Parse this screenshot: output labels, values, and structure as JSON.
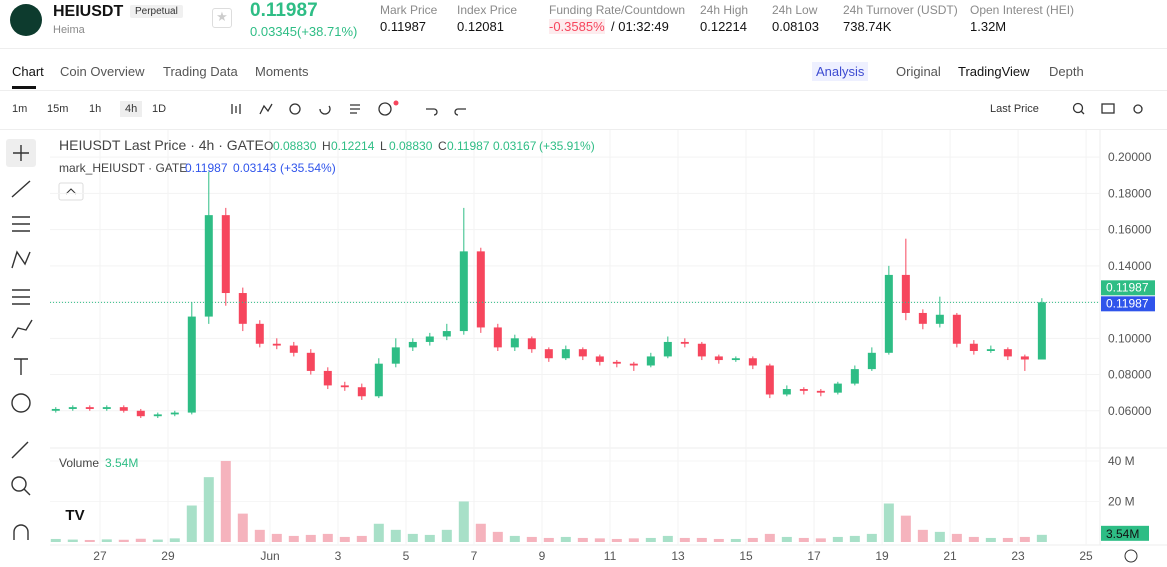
{
  "header": {
    "symbol": "HEIUSDT",
    "badge": "Perpetual",
    "subtitle": "Heima",
    "price": "0.11987",
    "change": "0.03345(+38.71%)",
    "stats": [
      {
        "label": "Mark Price",
        "value": "0.11987"
      },
      {
        "label": "Index Price",
        "value": "0.12081"
      },
      {
        "label": "Funding Rate/Countdown",
        "value": "-0.3585%",
        "extra": "/ 01:32:49"
      },
      {
        "label": "24h High",
        "value": "0.12214"
      },
      {
        "label": "24h Low",
        "value": "0.08103"
      },
      {
        "label": "24h Turnover (USDT)",
        "value": "738.74K"
      },
      {
        "label": "Open Interest (HEI)",
        "value": "1.32M"
      }
    ]
  },
  "tabs": [
    "Chart",
    "Coin Overview",
    "Trading Data",
    "Moments"
  ],
  "views": [
    "Analysis",
    "Original",
    "TradingView",
    "Depth"
  ],
  "intervals": [
    "1m",
    "15m",
    "1h",
    "4h",
    "1D"
  ],
  "price_source": "Last Price",
  "chart_data": {
    "type": "candlestick",
    "title": "HEIUSDT Last Price · 4h · GATE",
    "legend": [
      {
        "key": "O",
        "value": "0.08830"
      },
      {
        "key": "H",
        "value": "0.12214"
      },
      {
        "key": "L",
        "value": "0.08830"
      },
      {
        "key": "C",
        "value": "0.11987"
      }
    ],
    "change": "0.03167",
    "change_pct": "(+35.91%)",
    "mark_line": {
      "name": "mark_HEIUSDT · GATE",
      "value": "0.11987",
      "change": "0.03143",
      "change_pct": "(+35.54%)"
    },
    "volume_title": "Volume",
    "volume_value": "3.54M",
    "volume_tag": "3.54M",
    "last_price_tag": "0.11987",
    "mark_price_tag": "0.11987",
    "up_color": "#2ebd85",
    "down_color": "#f6465d",
    "up_volume_color": "#a8e0c8",
    "down_volume_color": "#f5b3bd",
    "xlim": [
      25.53,
      56.41
    ],
    "xticks": [
      27,
      29,
      {
        "value": 32,
        "label": "Jun"
      },
      {
        "value": 34,
        "label": "3"
      },
      {
        "value": 36,
        "label": "5"
      },
      {
        "value": 38,
        "label": "7"
      },
      {
        "value": 40,
        "label": "9"
      },
      {
        "value": 42,
        "label": "11"
      },
      {
        "value": 44,
        "label": "13"
      },
      {
        "value": 46,
        "label": "15"
      },
      {
        "value": 48,
        "label": "17"
      },
      {
        "value": 50,
        "label": "19"
      },
      {
        "value": 52,
        "label": "21"
      },
      {
        "value": 54,
        "label": "23"
      },
      {
        "value": 56,
        "label": "25"
      }
    ],
    "ylim": [
      0.04,
      0.215
    ],
    "yticks": [
      {
        "value": 0.06,
        "label": "0.06000"
      },
      {
        "value": 0.08,
        "label": "0.08000"
      },
      {
        "value": 0.1,
        "label": "0.10000"
      },
      {
        "value": 0.12,
        "label": "0.12000"
      },
      {
        "value": 0.14,
        "label": "0.14000"
      },
      {
        "value": 0.16,
        "label": "0.16000"
      },
      {
        "value": 0.18,
        "label": "0.18000"
      },
      {
        "value": 0.2,
        "label": "0.20000"
      }
    ],
    "volume_ylim": [
      0,
      45400000
    ],
    "volume_ticks": [
      {
        "value": 20000000,
        "label": "20 M"
      },
      {
        "value": 40000000,
        "label": "40 M"
      }
    ],
    "grid": true,
    "x": [
      25.7,
      26.2,
      26.7,
      27.2,
      27.7,
      28.2,
      28.7,
      29.2,
      29.7,
      30.2,
      30.7,
      31.2,
      31.7,
      32.2,
      32.7,
      33.2,
      33.7,
      34.2,
      34.7,
      35.2,
      35.7,
      36.2,
      36.7,
      37.2,
      37.7,
      38.2,
      38.7,
      39.2,
      39.7,
      40.2,
      40.7,
      41.2,
      41.7,
      42.2,
      42.7,
      43.2,
      43.7,
      44.2,
      44.7,
      45.2,
      45.7,
      46.2,
      46.7,
      47.2,
      47.7,
      48.2,
      48.7,
      49.2,
      49.7,
      50.2,
      50.7,
      51.2,
      51.7,
      52.2,
      52.7,
      53.2,
      53.7,
      54.2,
      54.7
    ],
    "open": [
      0.06,
      0.061,
      0.062,
      0.061,
      0.062,
      0.06,
      0.057,
      0.058,
      0.059,
      0.112,
      0.168,
      0.125,
      0.108,
      0.097,
      0.096,
      0.092,
      0.082,
      0.074,
      0.073,
      0.068,
      0.086,
      0.095,
      0.098,
      0.101,
      0.104,
      0.148,
      0.106,
      0.095,
      0.1,
      0.094,
      0.089,
      0.094,
      0.09,
      0.087,
      0.086,
      0.085,
      0.09,
      0.098,
      0.097,
      0.09,
      0.088,
      0.089,
      0.085,
      0.069,
      0.072,
      0.071,
      0.07,
      0.075,
      0.083,
      0.092,
      0.135,
      0.114,
      0.108,
      0.113,
      0.097,
      0.093,
      0.094,
      0.09,
      0.0883
    ],
    "high": [
      0.062,
      0.063,
      0.063,
      0.063,
      0.063,
      0.061,
      0.059,
      0.06,
      0.12,
      0.192,
      0.172,
      0.128,
      0.11,
      0.1,
      0.098,
      0.094,
      0.084,
      0.076,
      0.075,
      0.089,
      0.1,
      0.1,
      0.103,
      0.108,
      0.172,
      0.15,
      0.108,
      0.102,
      0.101,
      0.095,
      0.096,
      0.095,
      0.091,
      0.088,
      0.087,
      0.092,
      0.101,
      0.1,
      0.098,
      0.091,
      0.09,
      0.09,
      0.086,
      0.074,
      0.073,
      0.072,
      0.076,
      0.085,
      0.095,
      0.14,
      0.155,
      0.116,
      0.123,
      0.114,
      0.099,
      0.096,
      0.095,
      0.091,
      0.12214
    ],
    "low": [
      0.059,
      0.06,
      0.06,
      0.06,
      0.059,
      0.056,
      0.056,
      0.057,
      0.058,
      0.108,
      0.118,
      0.104,
      0.095,
      0.094,
      0.09,
      0.08,
      0.072,
      0.071,
      0.066,
      0.067,
      0.084,
      0.093,
      0.096,
      0.099,
      0.102,
      0.103,
      0.093,
      0.093,
      0.092,
      0.087,
      0.088,
      0.088,
      0.085,
      0.084,
      0.082,
      0.084,
      0.089,
      0.095,
      0.088,
      0.086,
      0.087,
      0.083,
      0.067,
      0.068,
      0.069,
      0.068,
      0.069,
      0.074,
      0.082,
      0.091,
      0.11,
      0.105,
      0.106,
      0.095,
      0.091,
      0.092,
      0.088,
      0.082,
      0.0883
    ],
    "close": [
      0.061,
      0.062,
      0.061,
      0.062,
      0.06,
      0.057,
      0.058,
      0.059,
      0.112,
      0.168,
      0.125,
      0.108,
      0.097,
      0.096,
      0.092,
      0.082,
      0.074,
      0.073,
      0.068,
      0.086,
      0.095,
      0.098,
      0.101,
      0.104,
      0.148,
      0.106,
      0.095,
      0.1,
      0.094,
      0.089,
      0.094,
      0.09,
      0.087,
      0.086,
      0.085,
      0.09,
      0.098,
      0.097,
      0.09,
      0.088,
      0.089,
      0.085,
      0.069,
      0.072,
      0.071,
      0.07,
      0.075,
      0.083,
      0.092,
      0.135,
      0.114,
      0.108,
      0.113,
      0.097,
      0.093,
      0.094,
      0.09,
      0.0883,
      0.11987
    ],
    "volume": [
      1500000,
      1200000,
      1000000,
      1300000,
      1100000,
      1600000,
      1200000,
      1800000,
      18000000,
      32000000,
      40000000,
      14000000,
      6000000,
      4000000,
      3000000,
      3500000,
      4000000,
      2500000,
      3000000,
      9000000,
      6000000,
      4000000,
      3500000,
      6000000,
      20000000,
      9000000,
      5000000,
      3000000,
      2500000,
      2000000,
      2500000,
      2000000,
      1800000,
      1500000,
      1800000,
      2000000,
      3000000,
      2000000,
      2000000,
      1500000,
      1500000,
      2000000,
      4000000,
      2500000,
      2000000,
      1800000,
      2500000,
      3000000,
      4000000,
      19000000,
      13000000,
      6000000,
      5000000,
      4000000,
      2500000,
      2000000,
      2000000,
      2500000,
      3540000
    ],
    "volume_value_labels": {
      "58": "3.54M"
    }
  }
}
